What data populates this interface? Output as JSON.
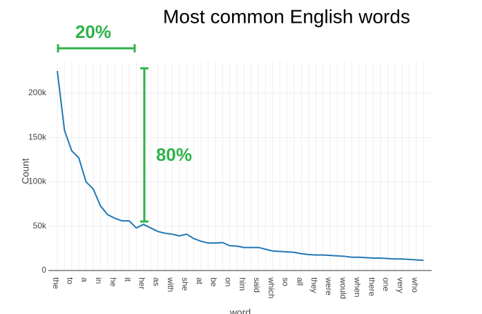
{
  "chart_data": {
    "type": "line",
    "title": "Most common English words",
    "annotations": [
      "20%",
      "80%"
    ],
    "x_label": "word",
    "y_label": "Count",
    "categories": [
      "the",
      null,
      "to",
      null,
      "a",
      null,
      "in",
      null,
      "he",
      null,
      "it",
      null,
      "her",
      null,
      "as",
      null,
      "with",
      null,
      "she",
      null,
      "at",
      null,
      "be",
      null,
      "on",
      null,
      "him",
      null,
      "said",
      null,
      "which",
      null,
      "so",
      null,
      "all",
      null,
      "they",
      null,
      "were",
      null,
      "would",
      null,
      "when",
      null,
      "there",
      null,
      "one",
      null,
      "very",
      null,
      "who",
      null
    ],
    "series": [
      {
        "name": "Count",
        "color": "#1f77b4",
        "values": [
          225000,
          158000,
          135000,
          127000,
          100000,
          92000,
          73000,
          63000,
          59000,
          56000,
          56000,
          48000,
          52000,
          48000,
          44000,
          42000,
          41000,
          39000,
          41000,
          36000,
          33000,
          31000,
          31000,
          31500,
          28000,
          27500,
          26000,
          26000,
          26000,
          24000,
          22000,
          21500,
          21000,
          20500,
          19000,
          18000,
          17500,
          17500,
          17000,
          16500,
          16000,
          15000,
          15000,
          14500,
          14000,
          14000,
          13500,
          13000,
          13000,
          12500,
          12000,
          11500
        ]
      }
    ],
    "ylim": [
      0,
      235000
    ],
    "yticks": [
      0,
      {
        "value": 50000,
        "label": "50k"
      },
      {
        "value": 100000,
        "label": "100k"
      },
      {
        "value": 150000,
        "label": "150k"
      },
      {
        "value": 200000,
        "label": "200k"
      }
    ],
    "grid": true
  }
}
